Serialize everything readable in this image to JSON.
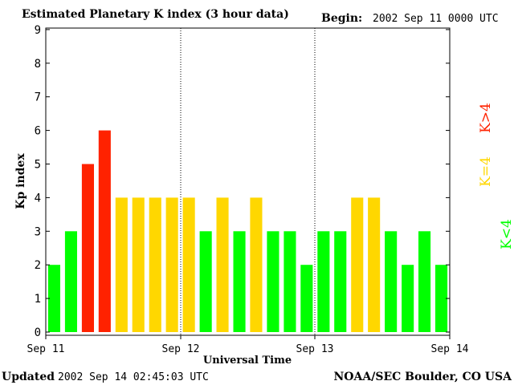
{
  "header": {
    "title": "Estimated Planetary K index (3 hour data)",
    "begin_label": "Begin:",
    "begin_value": "2002 Sep 11 0000 UTC"
  },
  "footer": {
    "updated_label": "Updated",
    "updated_value": "2002 Sep 14 02:45:03 UTC",
    "source": "NOAA/SEC Boulder, CO USA"
  },
  "colors": {
    "low": "#00ff00",
    "mid": "#ffd700",
    "high": "#ff2200"
  },
  "chart_data": {
    "type": "bar",
    "ylabel": "Kp index",
    "xlabel": "Universal Time",
    "ylim": [
      0,
      9
    ],
    "yticks": [
      "0",
      "1",
      "2",
      "3",
      "4",
      "5",
      "6",
      "7",
      "8",
      "9"
    ],
    "xticks": [
      "Sep 11",
      "Sep 12",
      "Sep 13",
      "Sep 14"
    ],
    "values": [
      2,
      3,
      5,
      6,
      4,
      4,
      4,
      4,
      4,
      3,
      4,
      3,
      4,
      3,
      3,
      2,
      3,
      3,
      4,
      4,
      3,
      2,
      3,
      2
    ],
    "legend": {
      "low": "K<4",
      "mid": "K=4",
      "high": "K>4"
    }
  }
}
